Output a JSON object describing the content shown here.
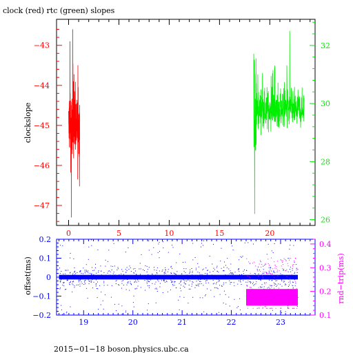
{
  "colors": {
    "clock": "#ff0000",
    "rtc": "#00ee00",
    "offset": "#0000ff",
    "rndtrip": "#ff00ff",
    "frame": "#000000"
  },
  "chart_data": [
    {
      "type": "line",
      "title": "clock (red) rtc (green) slopes",
      "xlabel": "",
      "ylabel": "clockslope",
      "xlim": [
        -1.2,
        24.5
      ],
      "x_ticks": [
        0,
        5,
        10,
        15,
        20
      ],
      "x_tick_labels": [
        "0",
        "5",
        "10",
        "15",
        "20"
      ],
      "y_left_lim": [
        -47.5,
        -42.35
      ],
      "y_left_ticks": [
        -43,
        -44,
        -45,
        -46,
        -47
      ],
      "y_left_tick_labels": [
        "−43",
        "−44",
        "−45",
        "−46",
        "−47"
      ],
      "y_right_lim": [
        25.8,
        32.9
      ],
      "y_right_ticks": [
        26,
        28,
        30,
        32
      ],
      "y_right_tick_labels": [
        "26",
        "28",
        "30",
        "32"
      ],
      "series": [
        {
          "name": "clock (red)",
          "axis": "left",
          "x_range": [
            0.0,
            1.1
          ],
          "y_center": -45.0,
          "y_min": -47.3,
          "y_max": -42.6
        },
        {
          "name": "rtc (green)",
          "axis": "right",
          "x_range": [
            18.4,
            23.4
          ],
          "y_center": 29.8,
          "y_min": 26.2,
          "y_max": 32.5
        }
      ],
      "grid": false
    },
    {
      "type": "scatter",
      "xlabel": "",
      "ylabel": "offset(ms)",
      "y2label": "rnd−trip(ms)",
      "xlim": [
        18.45,
        23.7
      ],
      "x_ticks": [
        19,
        20,
        21,
        22,
        23
      ],
      "x_tick_labels": [
        "19",
        "20",
        "21",
        "22",
        "23"
      ],
      "y_left_lim": [
        -0.2,
        0.2
      ],
      "y_left_ticks": [
        0.2,
        0.1,
        0,
        -0.1,
        -0.2
      ],
      "y_left_tick_labels": [
        "0.2",
        "0.1",
        "0",
        "−0.1",
        "−0.2"
      ],
      "y_right_lim": [
        0.1,
        0.42
      ],
      "y_right_ticks": [
        0.1,
        0.2,
        0.3,
        0.4
      ],
      "y_right_tick_labels": [
        "0.1",
        "0.2",
        "0.3",
        "0.4"
      ],
      "series": [
        {
          "name": "offset",
          "axis": "left",
          "x_range": [
            18.5,
            23.35
          ],
          "y_center": 0.0,
          "y_band": 0.012
        },
        {
          "name": "rnd-trip",
          "axis": "right",
          "x_range": [
            22.3,
            23.35
          ],
          "y_center": 0.175,
          "y_band": 0.035
        }
      ],
      "grid": false
    }
  ],
  "footer": "2015−01−18  boson.physics.ubc.ca"
}
